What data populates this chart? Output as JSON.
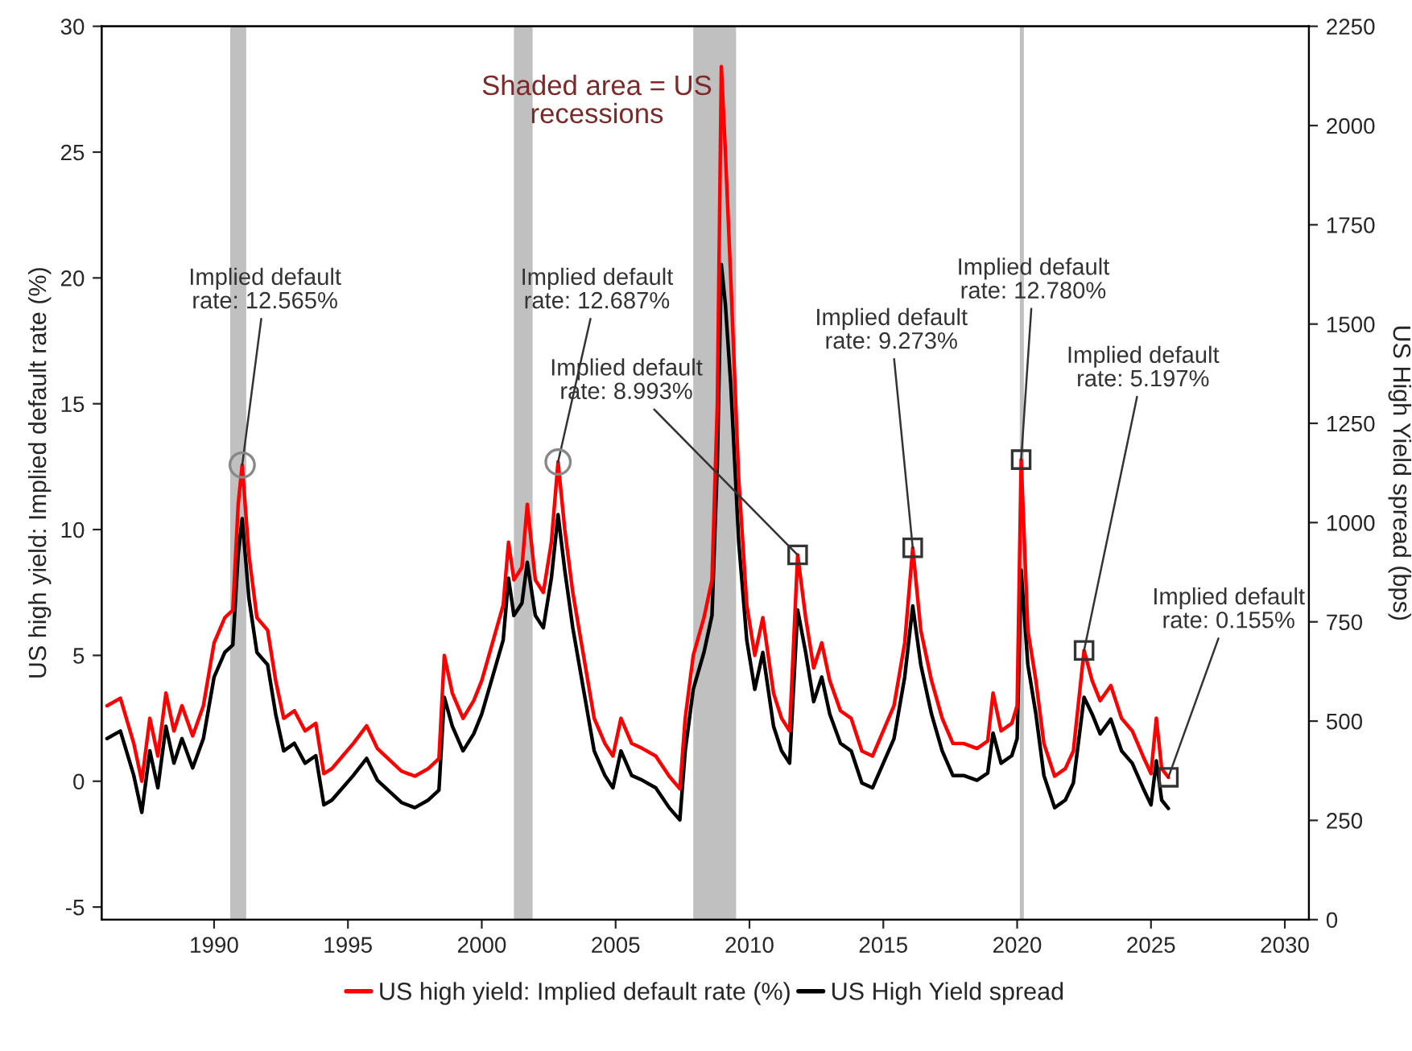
{
  "chart_data": {
    "type": "line",
    "ylabel": "US high yield: Implied default rate (%)",
    "y2label": "US High Yield spread (bps)",
    "xlim": [
      1985.8,
      2030.9
    ],
    "xticks": [
      1990,
      1995,
      2000,
      2005,
      2010,
      2015,
      2020,
      2025,
      2030
    ],
    "ylim": [
      -5.5,
      30
    ],
    "yticks": [
      -5,
      0,
      5,
      10,
      15,
      20,
      25,
      30
    ],
    "y2lim": [
      0,
      2250
    ],
    "y2ticks": [
      0,
      250,
      500,
      750,
      1000,
      1250,
      1500,
      1750,
      2000,
      2250
    ],
    "grid": false,
    "legend": "bottom",
    "marker": "none",
    "line_style": "solid",
    "x": [
      1986.0,
      1986.5,
      1987.0,
      1987.3,
      1987.6,
      1987.9,
      1988.2,
      1988.5,
      1988.8,
      1989.2,
      1989.6,
      1990.0,
      1990.4,
      1990.7,
      1990.9,
      1991.05,
      1991.3,
      1991.6,
      1992.0,
      1992.3,
      1992.6,
      1993.0,
      1993.4,
      1993.8,
      1994.1,
      1994.4,
      1994.8,
      1995.2,
      1995.7,
      1996.1,
      1996.5,
      1997.0,
      1997.5,
      1998.0,
      1998.4,
      1998.6,
      1998.9,
      1999.3,
      1999.7,
      2000.0,
      2000.4,
      2000.8,
      2001.0,
      2001.2,
      2001.5,
      2001.7,
      2002.0,
      2002.3,
      2002.6,
      2002.85,
      2003.1,
      2003.4,
      2003.8,
      2004.2,
      2004.6,
      2004.9,
      2005.2,
      2005.6,
      2006.0,
      2006.5,
      2007.0,
      2007.4,
      2007.6,
      2007.9,
      2008.3,
      2008.6,
      2008.8,
      2008.95,
      2009.1,
      2009.3,
      2009.6,
      2009.9,
      2010.2,
      2010.5,
      2010.9,
      2011.2,
      2011.5,
      2011.8,
      2012.1,
      2012.4,
      2012.7,
      2013.0,
      2013.4,
      2013.8,
      2014.2,
      2014.6,
      2015.0,
      2015.4,
      2015.8,
      2016.1,
      2016.4,
      2016.8,
      2017.2,
      2017.6,
      2018.0,
      2018.5,
      2018.9,
      2019.1,
      2019.4,
      2019.8,
      2020.0,
      2020.15,
      2020.4,
      2020.7,
      2021.0,
      2021.4,
      2021.8,
      2022.1,
      2022.5,
      2022.8,
      2023.1,
      2023.5,
      2023.9,
      2024.3,
      2024.7,
      2025.0,
      2025.2,
      2025.4,
      2025.65
    ],
    "series": [
      {
        "name": "US high yield: Implied default rate (%)",
        "color": "#ff0000",
        "values": [
          3.0,
          3.3,
          1.5,
          0.0,
          2.5,
          1.0,
          3.5,
          2.0,
          3.0,
          1.8,
          3.0,
          5.5,
          6.5,
          6.8,
          11.0,
          12.565,
          9.0,
          6.5,
          6.0,
          4.0,
          2.5,
          2.8,
          2.0,
          2.3,
          0.3,
          0.5,
          1.0,
          1.5,
          2.2,
          1.3,
          0.9,
          0.4,
          0.2,
          0.5,
          0.9,
          5.0,
          3.5,
          2.5,
          3.2,
          4.0,
          5.5,
          7.0,
          9.5,
          8.0,
          8.5,
          11.0,
          8.0,
          7.5,
          9.5,
          12.687,
          10.0,
          7.5,
          5.0,
          2.5,
          1.5,
          1.0,
          2.5,
          1.5,
          1.3,
          1.0,
          0.2,
          -0.3,
          2.5,
          5.0,
          6.5,
          8.0,
          15.0,
          28.4,
          25.0,
          20.0,
          12.0,
          7.0,
          5.0,
          6.5,
          3.5,
          2.5,
          2.0,
          8.993,
          6.5,
          4.5,
          5.5,
          4.0,
          2.8,
          2.5,
          1.2,
          1.0,
          2.0,
          3.0,
          5.5,
          9.273,
          6.0,
          4.0,
          2.5,
          1.5,
          1.5,
          1.3,
          1.6,
          3.5,
          2.0,
          2.3,
          3.0,
          12.78,
          6.0,
          4.0,
          1.5,
          0.2,
          0.5,
          1.2,
          5.197,
          4.0,
          3.2,
          3.8,
          2.5,
          2.0,
          1.0,
          0.3,
          2.5,
          0.5,
          0.155
        ]
      },
      {
        "name": "US High Yield spread",
        "color": "#000000",
        "axis": "y2",
        "values": [
          456,
          475,
          363,
          270,
          425,
          332,
          487,
          394,
          456,
          382,
          456,
          611,
          673,
          692,
          920,
          1010,
          810,
          673,
          642,
          518,
          425,
          444,
          394,
          413,
          289,
          301,
          332,
          363,
          406,
          351,
          326,
          295,
          282,
          301,
          326,
          560,
          487,
          425,
          468,
          518,
          611,
          704,
          860,
          766,
          797,
          900,
          766,
          735,
          860,
          1020,
          880,
          735,
          580,
          425,
          363,
          332,
          425,
          363,
          351,
          332,
          282,
          251,
          425,
          580,
          673,
          766,
          1150,
          1650,
          1550,
          1350,
          950,
          704,
          580,
          673,
          487,
          425,
          394,
          780,
          673,
          549,
          611,
          518,
          444,
          425,
          344,
          332,
          394,
          456,
          611,
          790,
          642,
          518,
          425,
          363,
          363,
          351,
          369,
          470,
          394,
          413,
          456,
          880,
          642,
          518,
          363,
          282,
          301,
          344,
          560,
          518,
          468,
          505,
          425,
          394,
          332,
          289,
          400,
          301,
          280
        ]
      }
    ],
    "bands": [
      {
        "axis": "x",
        "from": 1990.6,
        "to": 1991.2,
        "color": "#c0c0c0"
      },
      {
        "axis": "x",
        "from": 2001.2,
        "to": 2001.9,
        "color": "#c0c0c0"
      },
      {
        "axis": "x",
        "from": 2007.9,
        "to": 2009.5,
        "color": "#c0c0c0"
      },
      {
        "axis": "x",
        "from": 2020.1,
        "to": 2020.25,
        "color": "#c0c0c0"
      }
    ],
    "annotations": [
      {
        "text": "Shaded area = US recessions"
      },
      {
        "text": "Implied default rate: 12.565%",
        "x": 1991.05,
        "y": 12.565
      },
      {
        "text": "Implied default rate: 12.687%",
        "x": 2002.85,
        "y": 12.687
      },
      {
        "text": "Implied default rate: 8.993%",
        "x": 2011.8,
        "y": 8.993
      },
      {
        "text": "Implied default rate: 9.273%",
        "x": 2016.1,
        "y": 9.273
      },
      {
        "text": "Implied default rate: 12.780%",
        "x": 2020.15,
        "y": 12.78
      },
      {
        "text": "Implied default rate: 5.197%",
        "x": 2022.5,
        "y": 5.197
      },
      {
        "text": "Implied default rate: 0.155%",
        "x": 2025.65,
        "y": 0.155
      }
    ]
  }
}
